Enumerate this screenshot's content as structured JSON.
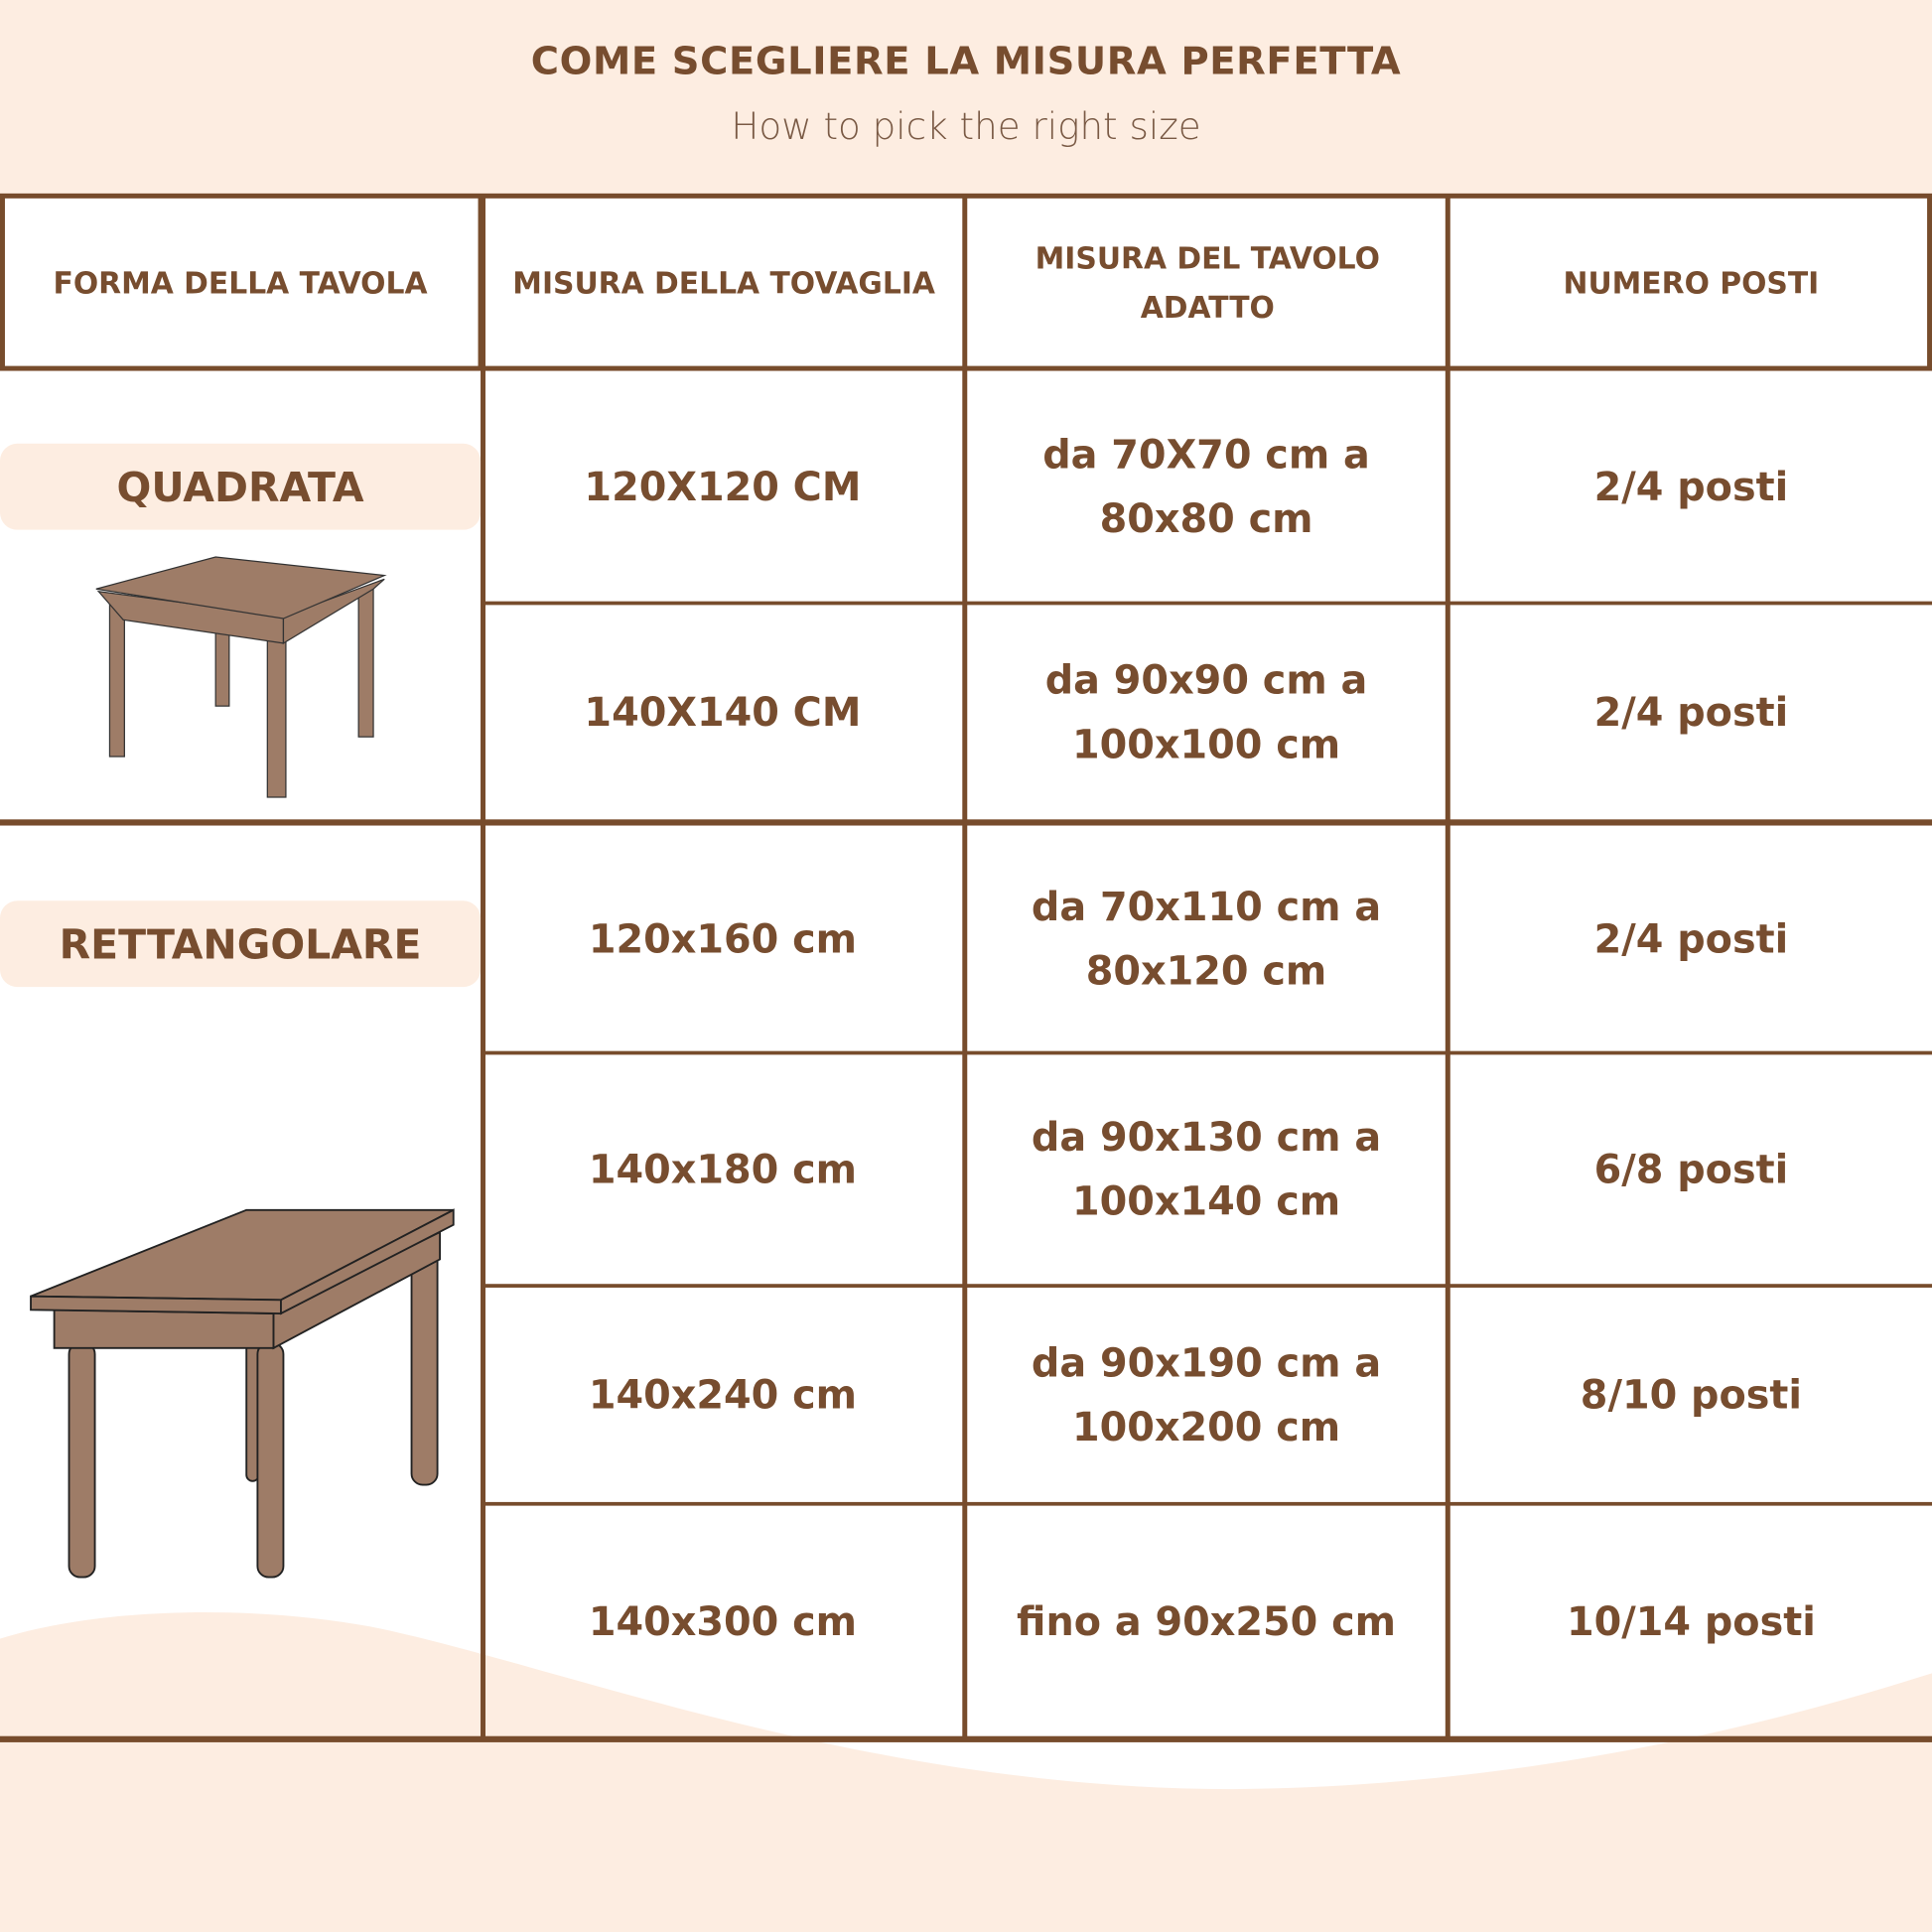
{
  "title": "COME SCEGLIERE LA MISURA PERFETTA",
  "subtitle": "How to pick the right size",
  "colors": {
    "brand": "#774c2c",
    "background": "#fdede1",
    "table_wood": "#9e7c67"
  },
  "headers": [
    "FORMA DELLA TAVOLA",
    "MISURA DELLA TOVAGLIA",
    "MISURA DEL TAVOLO ADATTO",
    "NUMERO POSTI"
  ],
  "groups": [
    {
      "shape": "QUADRATA",
      "icon": "square-table-icon"
    },
    {
      "shape": "RETTANGOLARE",
      "icon": "rectangular-table-icon"
    }
  ],
  "rows": [
    {
      "cloth": "120X120 CM",
      "table": "da 70X70 cm a 80x80 cm",
      "seats": "2/4 posti"
    },
    {
      "cloth": "140X140 CM",
      "table": "da 90x90 cm a 100x100 cm",
      "seats": "2/4 posti"
    },
    {
      "cloth": "120x160 cm",
      "table": "da 70x110 cm a 80x120 cm",
      "seats": "2/4 posti"
    },
    {
      "cloth": "140x180 cm",
      "table": "da 90x130 cm a 100x140 cm",
      "seats": "6/8 posti"
    },
    {
      "cloth": "140x240 cm",
      "table": "da 90x190 cm a 100x200 cm",
      "seats": "8/10 posti"
    },
    {
      "cloth": "140x300 cm",
      "table": "fino a 90x250 cm",
      "seats": "10/14 posti"
    }
  ]
}
